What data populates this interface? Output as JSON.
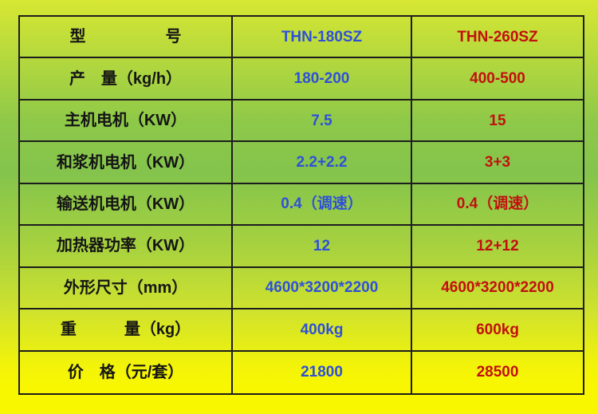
{
  "colors": {
    "label_text": "#151515",
    "model_1_text": "#2e50d9",
    "model_2_text": "#c21010",
    "grid_border": "#1d1d1d",
    "bg_gradient_top": "#d7e733",
    "bg_gradient_middle": "#84c44c",
    "bg_gradient_bottom": "#f9f700"
  },
  "table": {
    "rows": [
      {
        "label": "型　　　　　号",
        "model_1": "THN-180SZ",
        "model_2": "THN-260SZ"
      },
      {
        "label": "产　量（kg/h）",
        "model_1": "180-200",
        "model_2": "400-500"
      },
      {
        "label": "主机电机（KW）",
        "model_1": "7.5",
        "model_2": "15"
      },
      {
        "label": "和浆机电机（KW）",
        "model_1": "2.2+2.2",
        "model_2": "3+3"
      },
      {
        "label": "输送机电机（KW）",
        "model_1": "0.4（调速）",
        "model_2": "0.4（调速）"
      },
      {
        "label": "加热器功率（KW）",
        "model_1": "12",
        "model_2": "12+12"
      },
      {
        "label": "外形尺寸（mm）",
        "model_1": "4600*3200*2200",
        "model_2": "4600*3200*2200"
      },
      {
        "label": "重　　　量（kg）",
        "model_1": "400kg",
        "model_2": "600kg"
      },
      {
        "label": "价　格（元/套）",
        "model_1": "21800",
        "model_2": "28500"
      }
    ]
  }
}
